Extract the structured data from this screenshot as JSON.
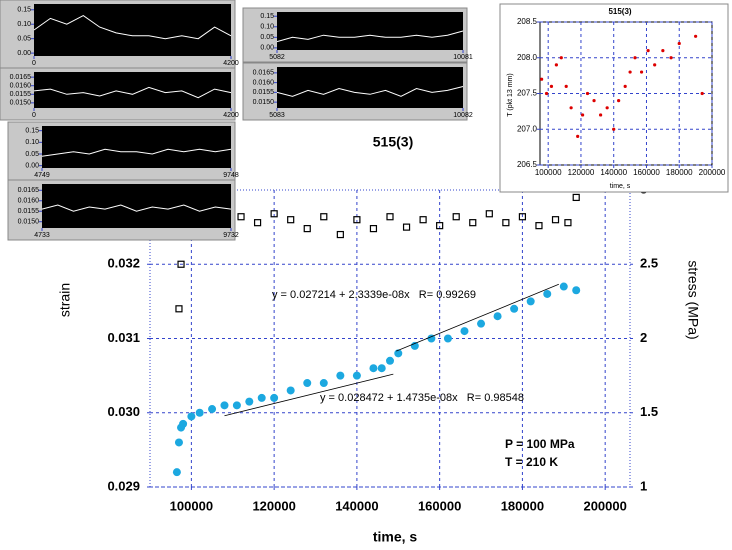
{
  "chart_data": [
    {
      "type": "scatter",
      "title": "515(3)",
      "xlabel": "time, s",
      "ylabel": "strain",
      "y2label": "stress (MPa)",
      "xlim": [
        90000,
        206000
      ],
      "xticks": [
        100000,
        120000,
        140000,
        160000,
        180000,
        200000
      ],
      "ylim": [
        0.029,
        0.033
      ],
      "yticks": [
        0.029,
        {
          "value": 0.03,
          "label": "0.030"
        },
        0.031,
        0.032
      ],
      "y2lim": [
        1,
        3
      ],
      "y2ticks": [
        1,
        1.5,
        2,
        2.5,
        3
      ],
      "grid": true,
      "series": [
        {
          "color": "#1ca8e0",
          "marker": "circle",
          "x": [
            96500,
            97000,
            97500,
            98000,
            100000,
            102000,
            105000,
            108000,
            111000,
            114000,
            117000,
            120000,
            124000,
            128000,
            132000,
            136000,
            140000,
            144000,
            146000,
            148000,
            150000,
            154000,
            158000,
            162000,
            166000,
            170000,
            174000,
            178000,
            182000,
            186000,
            190000,
            193000
          ],
          "values": [
            0.0292,
            0.0296,
            0.0298,
            0.02985,
            0.02995,
            0.03,
            0.03005,
            0.0301,
            0.0301,
            0.03015,
            0.0302,
            0.0302,
            0.0303,
            0.0304,
            0.0304,
            0.0305,
            0.0305,
            0.0306,
            0.0306,
            0.0307,
            0.0308,
            0.0309,
            0.031,
            0.031,
            0.0311,
            0.0312,
            0.0313,
            0.0314,
            0.0315,
            0.0316,
            0.0317,
            0.03165
          ]
        },
        {
          "color": "#000000",
          "marker": "square",
          "axis": "y2",
          "x": [
            97000,
            97500,
            98000,
            100000,
            104000,
            108000,
            112000,
            116000,
            120000,
            124000,
            128000,
            132000,
            136000,
            140000,
            144000,
            148000,
            152000,
            156000,
            160000,
            164000,
            168000,
            172000,
            176000,
            180000,
            184000,
            188000,
            191000,
            193000
          ],
          "values": [
            2.2,
            2.5,
            2.8,
            2.85,
            2.8,
            2.78,
            2.82,
            2.78,
            2.84,
            2.8,
            2.74,
            2.82,
            2.7,
            2.8,
            2.74,
            2.82,
            2.75,
            2.8,
            2.76,
            2.82,
            2.78,
            2.84,
            2.78,
            2.82,
            2.76,
            2.8,
            2.78,
            2.95
          ]
        }
      ],
      "fits": [
        {
          "x": [
            108000,
            148800
          ],
          "y": [
            0.02996,
            0.03052
          ],
          "label": "y = 0.028472 + 1.4735e-08x   R= 0.98548"
        },
        {
          "x": [
            149500,
            188800
          ],
          "y": [
            0.03083,
            0.03173
          ],
          "label": "y = 0.027214 + 2.3339e-08x   R= 0.99269"
        }
      ],
      "annotations": [
        "P = 100 MPa",
        "T = 210 K"
      ]
    },
    {
      "type": "scatter",
      "title": "515(3)",
      "xlabel": "time, s",
      "ylabel": "T (pkt 13 mm)",
      "xlim": [
        95000,
        200000
      ],
      "xticks": [
        100000,
        120000,
        140000,
        160000,
        180000,
        200000
      ],
      "ylim": [
        206.5,
        208.5
      ],
      "yticks": [
        206.5,
        {
          "value": 207,
          "label": "207.0"
        },
        207.5,
        {
          "value": 208,
          "label": "208.0"
        },
        208.5
      ],
      "grid": true,
      "series": [
        {
          "color": "#dd0000",
          "marker": "dot",
          "x": [
            96000,
            99000,
            102000,
            105000,
            108000,
            111000,
            114000,
            118000,
            121000,
            124000,
            128000,
            132000,
            136000,
            140000,
            143000,
            147000,
            150000,
            153000,
            157000,
            161000,
            165000,
            170000,
            175000,
            180000,
            190000,
            194000
          ],
          "values": [
            207.7,
            207.5,
            207.6,
            207.9,
            208.0,
            207.6,
            207.3,
            206.9,
            207.2,
            207.5,
            207.4,
            207.2,
            207.3,
            207.0,
            207.4,
            207.6,
            207.8,
            208.0,
            207.8,
            208.1,
            207.9,
            208.1,
            208.0,
            208.2,
            208.3,
            207.5
          ]
        }
      ]
    },
    {
      "type": "line",
      "xlim": [
        0,
        4200
      ],
      "xticks": [
        0,
        4200
      ],
      "ylim": [
        -0.01,
        0.17
      ],
      "yticks": [
        0.15,
        {
          "value": 0.1,
          "label": "0.10"
        },
        0.05,
        {
          "value": 0,
          "label": "0.00"
        }
      ],
      "series": [
        {
          "color": "#ffffff",
          "x": [
            0,
            350,
            700,
            1050,
            1400,
            1750,
            2100,
            2450,
            2800,
            3150,
            3500,
            3850,
            4200
          ],
          "values": [
            0.08,
            0.12,
            0.1,
            0.13,
            0.09,
            0.07,
            0.06,
            0.06,
            0.05,
            0.06,
            0.05,
            0.09,
            0.06
          ]
        }
      ]
    },
    {
      "type": "line",
      "xlim": [
        0,
        4200
      ],
      "xticks": [
        0,
        4200
      ],
      "ylim": [
        0.0147,
        0.0168
      ],
      "yticks": [
        0.0165,
        {
          "value": 0.016,
          "label": "0.0160"
        },
        0.0155,
        {
          "value": 0.015,
          "label": "0.0150"
        }
      ],
      "series": [
        {
          "color": "#ffffff",
          "x": [
            0,
            350,
            700,
            1050,
            1400,
            1750,
            2100,
            2450,
            2800,
            3150,
            3500,
            3850,
            4200
          ],
          "values": [
            0.0157,
            0.0158,
            0.0155,
            0.0156,
            0.0154,
            0.0157,
            0.0155,
            0.0159,
            0.0156,
            0.0157,
            0.0153,
            0.0158,
            0.0156
          ]
        }
      ]
    },
    {
      "type": "line",
      "xlim": [
        5082,
        10081
      ],
      "xticks": [
        5082,
        10081
      ],
      "ylim": [
        -0.01,
        0.17
      ],
      "yticks": [
        0.15,
        {
          "value": 0.1,
          "label": "0.10"
        },
        0.05,
        {
          "value": 0,
          "label": "0.00"
        }
      ],
      "series": [
        {
          "color": "#ffffff",
          "x": [
            5082,
            5499,
            5915,
            6332,
            6749,
            7165,
            7582,
            7999,
            8415,
            8832,
            9248,
            9665,
            10081
          ],
          "values": [
            0.03,
            0.05,
            0.04,
            0.06,
            0.05,
            0.05,
            0.06,
            0.05,
            0.05,
            0.06,
            0.05,
            0.06,
            0.08
          ]
        }
      ]
    },
    {
      "type": "line",
      "xlim": [
        5083,
        10082
      ],
      "xticks": [
        5083,
        10082
      ],
      "ylim": [
        0.0147,
        0.0168
      ],
      "yticks": [
        0.0165,
        {
          "value": 0.016,
          "label": "0.0160"
        },
        0.0155,
        {
          "value": 0.015,
          "label": "0.0150"
        }
      ],
      "series": [
        {
          "color": "#ffffff",
          "x": [
            5083,
            5500,
            5916,
            6333,
            6750,
            7166,
            7583,
            8000,
            8416,
            8833,
            9249,
            9666,
            10082
          ],
          "values": [
            0.0155,
            0.0153,
            0.0156,
            0.0154,
            0.0157,
            0.0155,
            0.0154,
            0.0156,
            0.0153,
            0.0157,
            0.0155,
            0.0156,
            0.0158
          ]
        }
      ]
    },
    {
      "type": "line",
      "xlim": [
        4749,
        9748
      ],
      "xticks": [
        4749,
        9748
      ],
      "ylim": [
        -0.01,
        0.17
      ],
      "yticks": [
        0.15,
        {
          "value": 0.1,
          "label": "0.10"
        },
        0.05,
        {
          "value": 0,
          "label": "0.00"
        }
      ],
      "series": [
        {
          "color": "#ffffff",
          "x": [
            4749,
            5166,
            5582,
            5999,
            6416,
            6832,
            7249,
            7666,
            8082,
            8499,
            8915,
            9332,
            9748
          ],
          "values": [
            0.04,
            0.05,
            0.06,
            0.05,
            0.07,
            0.06,
            0.06,
            0.05,
            0.07,
            0.06,
            0.07,
            0.06,
            0.07
          ]
        }
      ]
    },
    {
      "type": "line",
      "xlim": [
        4733,
        9732
      ],
      "xticks": [
        4733,
        9732
      ],
      "ylim": [
        0.0147,
        0.0168
      ],
      "yticks": [
        0.0165,
        {
          "value": 0.016,
          "label": "0.0160"
        },
        0.0155,
        {
          "value": 0.015,
          "label": "0.0150"
        }
      ],
      "series": [
        {
          "color": "#ffffff",
          "x": [
            4733,
            5150,
            5566,
            5983,
            6400,
            6816,
            7233,
            7650,
            8066,
            8483,
            8899,
            9316,
            9732
          ],
          "values": [
            0.0156,
            0.0158,
            0.0155,
            0.0157,
            0.0156,
            0.0158,
            0.0155,
            0.0157,
            0.0156,
            0.0158,
            0.0155,
            0.0157,
            0.0156
          ]
        }
      ]
    }
  ]
}
